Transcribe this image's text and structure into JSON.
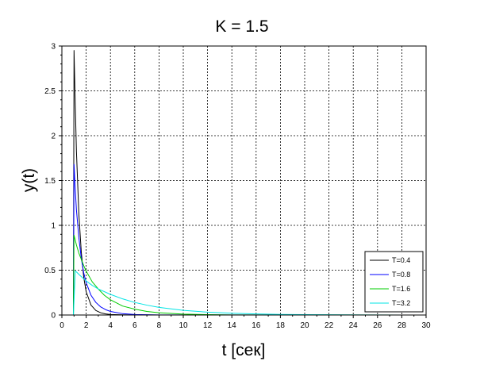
{
  "chart_data": {
    "type": "line",
    "title": "K = 1.5",
    "xlabel": "t [сек]",
    "ylabel": "y(t)",
    "xlim": [
      0,
      30
    ],
    "ylim": [
      0,
      3
    ],
    "xticks": [
      "0",
      "2",
      "4",
      "6",
      "8",
      "10",
      "12",
      "14",
      "16",
      "18",
      "20",
      "22",
      "24",
      "26",
      "28",
      "30"
    ],
    "yticks": [
      "0",
      "0.5",
      "1",
      "1.5",
      "2",
      "2.5",
      "3"
    ],
    "grid": true,
    "legend_position": "bottom-right",
    "series": [
      {
        "name": "T=0.4",
        "color": "#000000",
        "x": [
          0,
          0.95,
          1.0,
          1.1,
          1.2,
          1.4,
          1.6,
          1.8,
          2.0,
          2.4,
          2.8,
          3.2,
          3.6,
          4.0,
          5.0,
          6.0,
          8.0,
          30.0
        ],
        "y": [
          0,
          0,
          2.95,
          2.35,
          1.82,
          1.12,
          0.7,
          0.42,
          0.26,
          0.11,
          0.05,
          0.025,
          0.012,
          0.006,
          0.002,
          0.001,
          0.0,
          0.0
        ]
      },
      {
        "name": "T=0.8",
        "color": "#0000ff",
        "x": [
          0,
          0.95,
          1.0,
          1.1,
          1.2,
          1.4,
          1.6,
          1.8,
          2.0,
          2.4,
          2.8,
          3.2,
          3.6,
          4.0,
          5.0,
          6.0,
          7.0,
          8.0,
          30.0
        ],
        "y": [
          0,
          0,
          1.68,
          1.4,
          1.17,
          0.86,
          0.63,
          0.47,
          0.36,
          0.22,
          0.14,
          0.09,
          0.06,
          0.04,
          0.015,
          0.006,
          0.003,
          0.001,
          0.0
        ]
      },
      {
        "name": "T=1.6",
        "color": "#00cc00",
        "x": [
          0,
          0.95,
          1.0,
          1.2,
          1.4,
          1.6,
          1.8,
          2.0,
          2.5,
          3.0,
          3.5,
          4.0,
          5.0,
          6.0,
          7.0,
          8.0,
          10.0,
          12.0,
          14.0,
          30.0
        ],
        "y": [
          0,
          0,
          0.89,
          0.78,
          0.69,
          0.62,
          0.55,
          0.49,
          0.37,
          0.29,
          0.22,
          0.17,
          0.1,
          0.065,
          0.04,
          0.025,
          0.01,
          0.004,
          0.001,
          0.0
        ]
      },
      {
        "name": "T=3.2",
        "color": "#00e5e5",
        "x": [
          0,
          0.95,
          1.0,
          1.1,
          1.2,
          1.5,
          2.0,
          2.5,
          3.0,
          4.0,
          5.0,
          6.0,
          7.0,
          8.0,
          10.0,
          12.0,
          14.0,
          16.0,
          18.0,
          20.0,
          25.0,
          30.0
        ],
        "y": [
          0,
          0,
          0.16,
          0.49,
          0.48,
          0.44,
          0.38,
          0.33,
          0.29,
          0.23,
          0.18,
          0.14,
          0.11,
          0.085,
          0.052,
          0.032,
          0.02,
          0.012,
          0.007,
          0.004,
          0.001,
          0.0
        ]
      }
    ]
  }
}
